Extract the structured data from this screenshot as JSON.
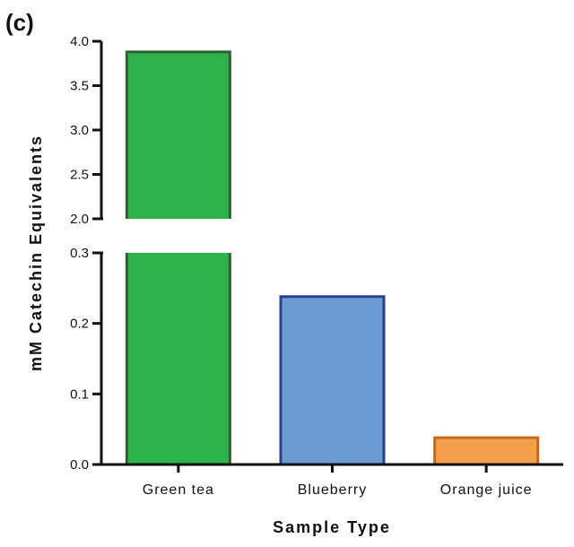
{
  "panel_label": "(c)",
  "chart_data": {
    "type": "bar",
    "broken_axis": true,
    "categories": [
      "Green tea",
      "Blueberry",
      "Orange juice"
    ],
    "values": [
      3.88,
      0.238,
      0.038
    ],
    "colors": [
      "#2db34a",
      "#6a9bd1",
      "#f4a04a"
    ],
    "edge_colors": [
      "#2f5f35",
      "#2a3f8f",
      "#c8661a"
    ],
    "xlabel": "Sample Type",
    "ylabel": "mM Catechin Equivalents",
    "y_segments": [
      {
        "ylim": [
          0,
          0.3
        ],
        "ticks": [
          "0.0",
          "0.1",
          "0.2",
          "0.3"
        ]
      },
      {
        "ylim": [
          2.0,
          4.0
        ],
        "ticks": [
          "2.0",
          "2.5",
          "3.0",
          "3.5",
          "4.0"
        ]
      }
    ],
    "grid": false,
    "legend": "none"
  }
}
